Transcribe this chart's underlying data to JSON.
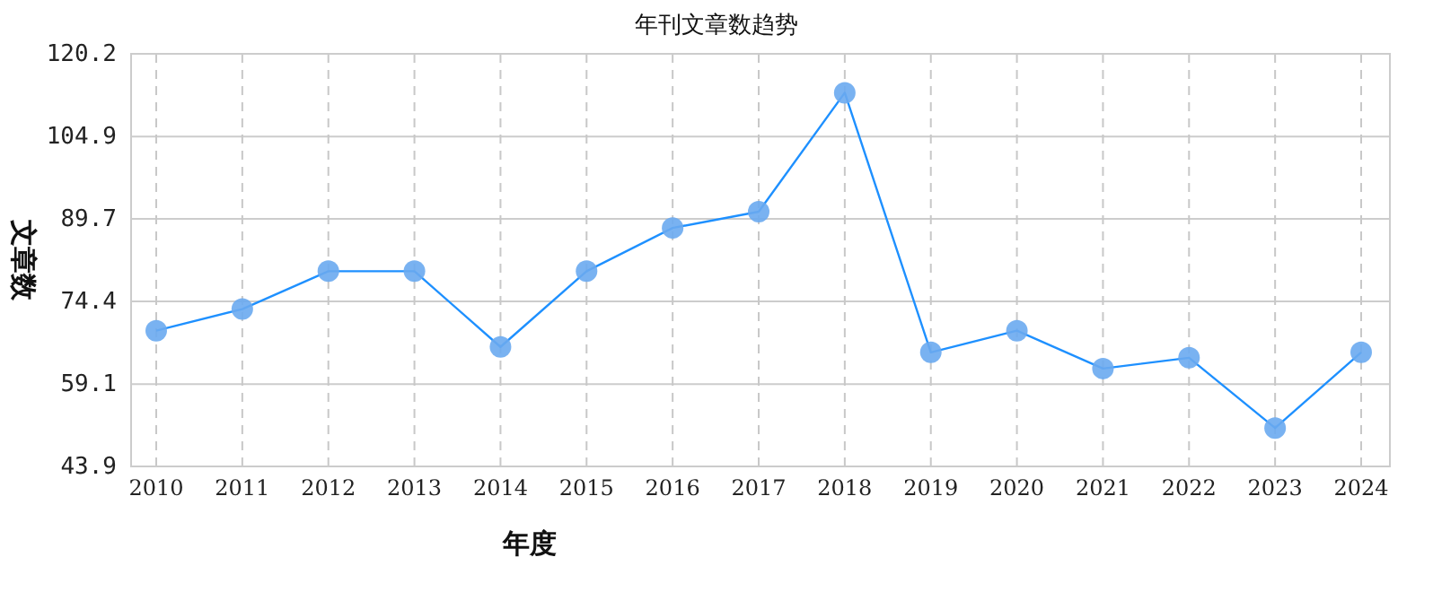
{
  "chart_data": {
    "type": "line",
    "title": "年刊文章数趋势",
    "xlabel": "年度",
    "ylabel": "文章数",
    "categories": [
      "2010",
      "2011",
      "2012",
      "2013",
      "2014",
      "2015",
      "2016",
      "2017",
      "2018",
      "2019",
      "2020",
      "2021",
      "2022",
      "2023",
      "2024"
    ],
    "series": [
      {
        "color": "#1e90ff",
        "values": [
          69,
          73,
          80,
          80,
          66,
          80,
          88,
          91,
          113,
          65,
          69,
          62,
          64,
          51,
          65
        ]
      }
    ],
    "ylim": [
      43.9,
      120.2
    ],
    "yticks": [
      43.9,
      59.1,
      74.4,
      89.7,
      104.9,
      120.2
    ],
    "grid": true,
    "marker": "circle",
    "line_style": "solid"
  }
}
